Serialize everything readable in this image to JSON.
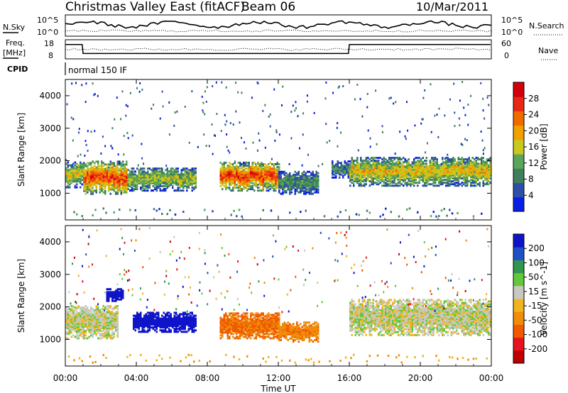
{
  "header": {
    "title": "Christmas Valley East (fitACF)",
    "beam": "Beam 06",
    "date": "10/Mar/2011"
  },
  "top_panels": {
    "nsky_label": "N.Sky",
    "nsky_scale_left": [
      "10^5",
      "10^0"
    ],
    "nsky_scale_right": [
      "10^5",
      "10^0"
    ],
    "nsearch_label": "N.Search",
    "freq_label": "Freq.",
    "freq_unit": "[MHz]",
    "freq_ticks": [
      "18",
      "8"
    ],
    "nave_ticks": [
      "60",
      "0"
    ],
    "nave_label": "Nave",
    "cpid_label": "CPID",
    "cpid_value": "normal 150 IF"
  },
  "colors": {
    "power": [
      "#0a1ee6",
      "#2e4fa8",
      "#3f7f5a",
      "#5aa55a",
      "#c8c81e",
      "#f0a000",
      "#f06a00",
      "#e62814",
      "#d2000a"
    ],
    "velocity": [
      "#0f14c8",
      "#1e50c8",
      "#329650",
      "#64c83c",
      "#c8c8c0",
      "#f0b41e",
      "#f08c0a",
      "#f05a00",
      "#e6141e",
      "#be0000"
    ],
    "ground": "#c8c8c0"
  },
  "chart_data": [
    {
      "type": "heatmap",
      "name": "power",
      "x_ticks": [
        "00:00",
        "04:00",
        "08:00",
        "12:00",
        "16:00",
        "20:00",
        "00:00"
      ],
      "xlim_hours": [
        0,
        24
      ],
      "ylabel": "Slant Range [km]",
      "y_ticks": [
        1000,
        2000,
        3000,
        4000
      ],
      "ylim_km": [
        180,
        4500
      ],
      "colorbar": {
        "label": "Power [dB]",
        "ticks": [
          "28",
          "24",
          "20",
          "16",
          "12",
          "8",
          "4"
        ],
        "range_db": [
          0,
          32
        ]
      },
      "echo_regions": [
        {
          "t_start": 0.0,
          "t_end": 1.0,
          "r_center": 1550,
          "r_halfwidth": 400,
          "level": 0.55
        },
        {
          "t_start": 1.0,
          "t_end": 3.5,
          "r_center": 1450,
          "r_halfwidth": 500,
          "level": 0.85
        },
        {
          "t_start": 3.5,
          "t_end": 7.3,
          "r_center": 1400,
          "r_halfwidth": 350,
          "level": 0.5
        },
        {
          "t_start": 8.7,
          "t_end": 12.0,
          "r_center": 1500,
          "r_halfwidth": 450,
          "level": 0.85
        },
        {
          "t_start": 12.0,
          "t_end": 14.2,
          "r_center": 1300,
          "r_halfwidth": 350,
          "level": 0.35
        },
        {
          "t_start": 15.0,
          "t_end": 16.0,
          "r_center": 1700,
          "r_halfwidth": 250,
          "level": 0.3
        },
        {
          "t_start": 16.0,
          "t_end": 24.0,
          "r_center": 1650,
          "r_halfwidth": 450,
          "level": 0.6
        }
      ]
    },
    {
      "type": "heatmap",
      "name": "velocity",
      "x_ticks": [
        "00:00",
        "04:00",
        "08:00",
        "12:00",
        "16:00",
        "20:00",
        "00:00"
      ],
      "xlim_hours": [
        0,
        24
      ],
      "xlabel": "Time UT",
      "ylabel": "Slant Range [km]",
      "y_ticks": [
        1000,
        2000,
        3000,
        4000
      ],
      "ylim_km": [
        180,
        4500
      ],
      "colorbar": {
        "label": "Velocity [m s^-1]",
        "ticks": [
          "200",
          "100",
          "50",
          "15",
          "-15",
          "-50",
          "-100",
          "-200"
        ],
        "range_ms": [
          -250,
          250
        ]
      },
      "echo_regions": [
        {
          "t_start": 0.0,
          "t_end": 3.0,
          "r_center": 1500,
          "r_halfwidth": 500,
          "velocity": 0
        },
        {
          "t_start": 2.3,
          "t_end": 3.3,
          "r_center": 2350,
          "r_halfwidth": 200,
          "velocity": 200
        },
        {
          "t_start": 3.8,
          "t_end": 7.3,
          "r_center": 1500,
          "r_halfwidth": 300,
          "velocity": 180
        },
        {
          "t_start": 8.7,
          "t_end": 12.0,
          "r_center": 1400,
          "r_halfwidth": 400,
          "velocity": -80
        },
        {
          "t_start": 12.0,
          "t_end": 14.2,
          "r_center": 1200,
          "r_halfwidth": 300,
          "velocity": -60
        },
        {
          "t_start": 16.0,
          "t_end": 24.0,
          "r_center": 1650,
          "r_halfwidth": 550,
          "velocity": 0
        }
      ]
    }
  ]
}
